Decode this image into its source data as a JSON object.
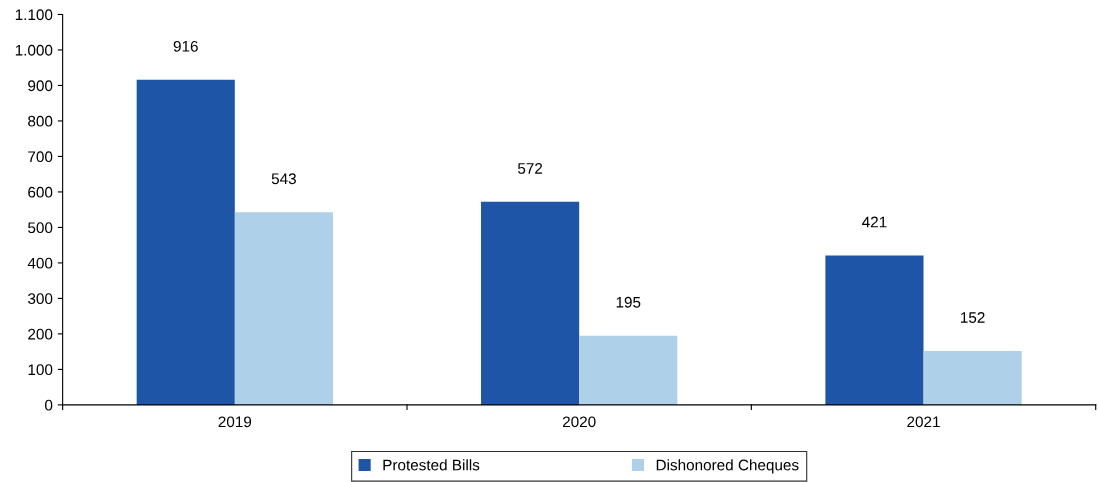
{
  "chart_data": {
    "type": "bar",
    "categories": [
      "2019",
      "2020",
      "2021"
    ],
    "series": [
      {
        "name": "Protested Bills",
        "color": "#1f55a6",
        "values": [
          916,
          572,
          421
        ]
      },
      {
        "name": "Dishonored Cheques",
        "color": "#aed0e8",
        "values": [
          543,
          195,
          152
        ]
      }
    ],
    "ylim": [
      0,
      1100
    ],
    "yticks": [
      0,
      100,
      200,
      300,
      400,
      500,
      600,
      700,
      800,
      900,
      {
        "value": 1000,
        "label": "1.000"
      },
      {
        "value": 1100,
        "label": "1.100"
      }
    ],
    "data_labels": true,
    "grid": false,
    "legend": "bottom"
  }
}
